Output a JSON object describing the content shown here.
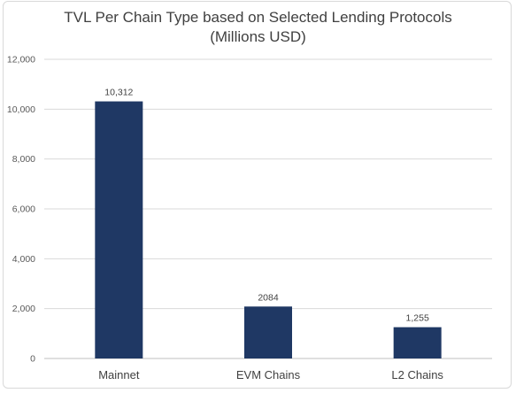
{
  "chart_data": {
    "type": "bar",
    "title_line1": "TVL Per Chain Type based on Selected Lending Protocols",
    "title_line2": "(Millions USD)",
    "xlabel": "",
    "ylabel": "",
    "categories": [
      "Mainnet",
      "EVM Chains",
      "L2 Chains"
    ],
    "values": [
      10312,
      2084,
      1255
    ],
    "data_labels": [
      "10,312",
      "2084",
      "1,255"
    ],
    "ylim": [
      0,
      12000
    ],
    "y_ticks": [
      0,
      2000,
      4000,
      6000,
      8000,
      10000,
      12000
    ],
    "y_tick_labels": [
      "0",
      "2,000",
      "4,000",
      "6,000",
      "8,000",
      "10,000",
      "12,000"
    ],
    "grid": true,
    "legend": "none",
    "bar_color": "#1f3864",
    "grid_color": "#d9d9d9"
  }
}
